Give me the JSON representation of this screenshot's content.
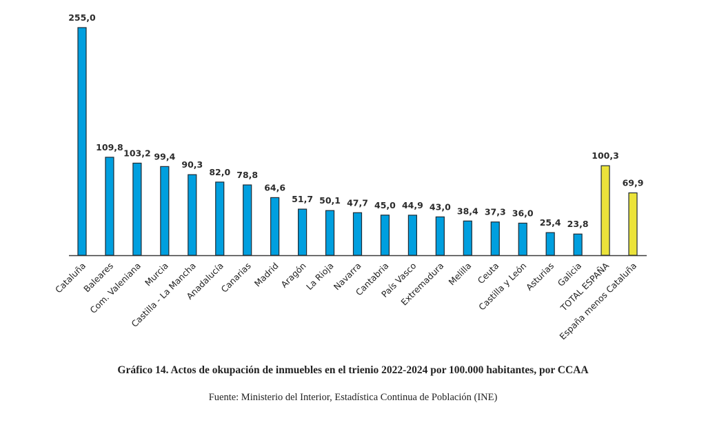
{
  "chart_data": {
    "type": "bar",
    "title": "Gráfico 14. Actos de okupación de inmuebles en el trienio 2022-2024 por 100.000 habitantes, por CCAA",
    "source": "Fuente: Ministerio del Interior, Estadística Continua de Población (INE)",
    "xlabel": "",
    "ylabel": "",
    "ylim": [
      0,
      255
    ],
    "grid": false,
    "legend": "none",
    "categories": [
      "Cataluña",
      "Baleares",
      "Com. Valeniana",
      "Murcia",
      "Castilla - La Mancha",
      "Anadalucía",
      "Canarias",
      "Madrid",
      "Aragón",
      "La Rioja",
      "Navarra",
      "Cantabria",
      "País Vasco",
      "Extremadura",
      "Melilla",
      "Ceuta",
      "Castilla y León",
      "Asturias",
      "Galicia",
      "TOTAL ESPAÑA",
      "España menos Cataluña"
    ],
    "values": [
      255.0,
      109.8,
      103.2,
      99.4,
      90.3,
      82.0,
      78.8,
      64.6,
      51.7,
      50.1,
      47.7,
      45.0,
      44.9,
      43.0,
      38.4,
      37.3,
      36.0,
      25.4,
      23.8,
      100.3,
      69.9
    ],
    "value_labels": [
      "255,0",
      "109,8",
      "103,2",
      "99,4",
      "90,3",
      "82,0",
      "78,8",
      "64,6",
      "51,7",
      "50,1",
      "47,7",
      "45,0",
      "44,9",
      "43,0",
      "38,4",
      "37,3",
      "36,0",
      "25,4",
      "23,8",
      "100,3",
      "69,9"
    ],
    "bar_colors": [
      "#009fdf",
      "#009fdf",
      "#009fdf",
      "#009fdf",
      "#009fdf",
      "#009fdf",
      "#009fdf",
      "#009fdf",
      "#009fdf",
      "#009fdf",
      "#009fdf",
      "#009fdf",
      "#009fdf",
      "#009fdf",
      "#009fdf",
      "#009fdf",
      "#009fdf",
      "#009fdf",
      "#009fdf",
      "#ebe33a",
      "#ebe33a"
    ]
  }
}
